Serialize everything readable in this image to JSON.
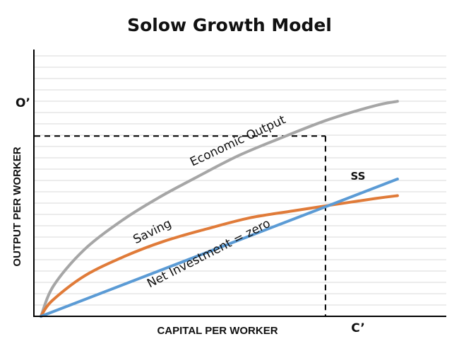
{
  "chart_data": {
    "type": "line",
    "title": "Solow Growth Model",
    "xlabel": "CAPITAL PER WORKER",
    "ylabel": "OUTPUT PER WORKER",
    "xlim": [
      0,
      10
    ],
    "ylim": [
      0,
      10
    ],
    "grid": true,
    "series": [
      {
        "name": "Economic Output",
        "color": "#a6a6a6",
        "x": [
          0,
          0.35,
          1.2,
          2.3,
          3.3,
          4.3,
          5.5,
          6.8,
          8.0,
          9.3,
          9.9
        ],
        "y": [
          0,
          1.1,
          2.4,
          3.5,
          4.3,
          5.0,
          5.8,
          6.5,
          7.1,
          7.6,
          7.75
        ]
      },
      {
        "name": "Saving",
        "color": "#e07b39",
        "x": [
          0,
          0.3,
          1.2,
          2.3,
          3.4,
          4.6,
          5.8,
          7.0,
          8.0,
          9.3,
          9.9
        ],
        "y": [
          0,
          0.55,
          1.45,
          2.15,
          2.7,
          3.15,
          3.55,
          3.8,
          4.0,
          4.25,
          4.35
        ]
      },
      {
        "name": "Net Investment = zero",
        "color": "#5b9bd5",
        "x": [
          0,
          9.9
        ],
        "y": [
          0,
          4.95
        ]
      }
    ],
    "annotations": {
      "steady_state_label": "SS",
      "steady_state": {
        "x": 8.0,
        "y": 4.0
      },
      "output_marker_label": "O’",
      "output_marker_y": 6.5,
      "capital_marker_label": "C’",
      "capital_marker_x": 7.9
    }
  }
}
